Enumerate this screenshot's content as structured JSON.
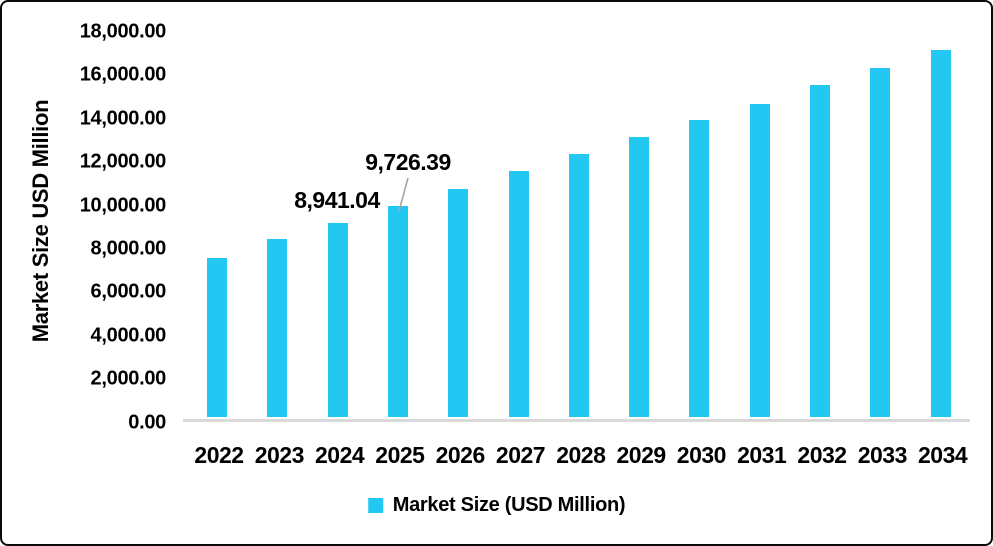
{
  "chart_data": {
    "type": "bar",
    "title": "",
    "xlabel": "",
    "ylabel": "Market Size USD Million",
    "categories": [
      "2022",
      "2023",
      "2024",
      "2025",
      "2026",
      "2027",
      "2028",
      "2029",
      "2030",
      "2031",
      "2032",
      "2033",
      "2034"
    ],
    "series": [
      {
        "name": "Market Size (USD Million)",
        "values": [
          7350,
          8200,
          8941.04,
          9726.39,
          10520,
          11360,
          12130,
          12900,
          13700,
          14450,
          15300,
          16100,
          16900
        ]
      }
    ],
    "ylim": [
      0,
      18000
    ],
    "ytick_step": 2000,
    "ytick_labels": [
      "0.00",
      "2,000.00",
      "4,000.00",
      "6,000.00",
      "8,000.00",
      "10,000.00",
      "12,000.00",
      "14,000.00",
      "16,000.00",
      "18,000.00"
    ],
    "grid": "off",
    "legend_position": "bottom-center",
    "bar_color": "#22C7F2",
    "annotations": [
      {
        "text": "8,941.04",
        "target_category": "2024",
        "leader_line": false
      },
      {
        "text": "9,726.39",
        "target_category": "2025",
        "leader_line": true
      }
    ]
  },
  "legend": {
    "label": "Market Size (USD Million)",
    "swatch_color": "#22C7F2"
  },
  "colors": {
    "bar": "#22C7F2",
    "axis_baseline": "#D9D9D9",
    "leader_line": "#A6A6A6",
    "text": "#000000",
    "frame_border": "#0B0B0B",
    "background": "#FFFFFF"
  }
}
